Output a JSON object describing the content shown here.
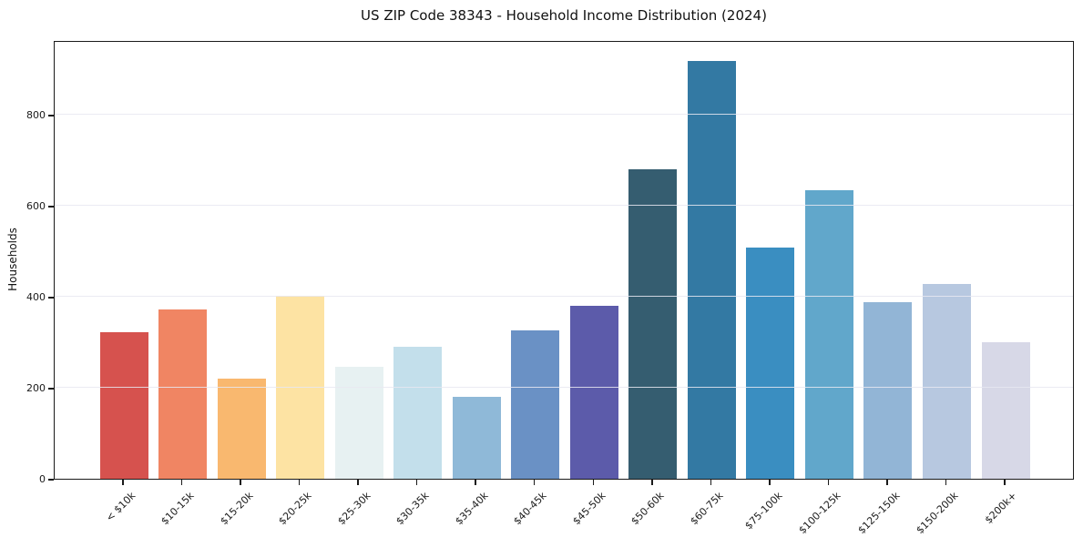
{
  "chart_data": {
    "type": "bar",
    "title": "US ZIP Code 38343 - Household Income Distribution (2024)",
    "xlabel": "",
    "ylabel": "Households",
    "categories": [
      "< $10k",
      "$10-15k",
      "$15-20k",
      "$20-25k",
      "$25-30k",
      "$30-35k",
      "$35-40k",
      "$40-45k",
      "$45-50k",
      "$50-60k",
      "$60-75k",
      "$75-100k",
      "$100-125k",
      "$125-150k",
      "$150-200k",
      "$200k+"
    ],
    "values": [
      322,
      372,
      220,
      402,
      246,
      290,
      180,
      326,
      380,
      680,
      918,
      508,
      634,
      389,
      428,
      300
    ],
    "bar_colors": [
      "#d6524e",
      "#f08563",
      "#f9b86f",
      "#fde3a3",
      "#e7f1f2",
      "#c3dfeb",
      "#8fb9d8",
      "#6a91c5",
      "#5c5baa",
      "#355d70",
      "#3379a3",
      "#3a8ec1",
      "#61a7cb",
      "#92b5d6",
      "#b7c8e0",
      "#d7d8e7"
    ],
    "yticks": [
      0,
      200,
      400,
      600,
      800
    ],
    "ylim": [
      0,
      964
    ],
    "grid": "horizontal-only",
    "legend": "none",
    "background_color": "#ffffff",
    "axis_color": "#1a1a1a"
  }
}
